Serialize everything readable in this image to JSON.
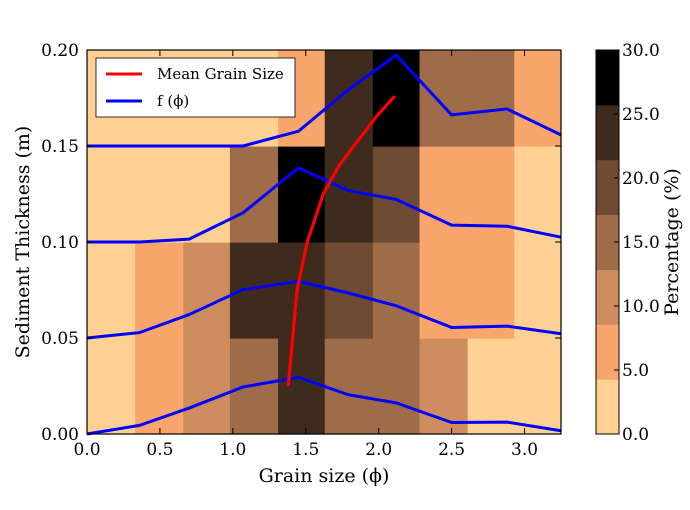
{
  "chart_data": {
    "type": "heatmap",
    "xlabel": "Grain size (ϕ)",
    "ylabel": "Sediment Thickness (m)",
    "xlim": [
      0.0,
      3.25
    ],
    "ylim": [
      0.0,
      0.2
    ],
    "x_ticks": [
      "0.0",
      "0.5",
      "1.0",
      "1.5",
      "2.0",
      "2.5",
      "3.0"
    ],
    "y_ticks": [
      "0.00",
      "0.05",
      "0.10",
      "0.15",
      "0.20"
    ],
    "x_edges": [
      0.0,
      0.33,
      0.66,
      0.98,
      1.31,
      1.63,
      1.96,
      2.28,
      2.61,
      2.93,
      3.25
    ],
    "y_edges": [
      0.0,
      0.05,
      0.1,
      0.15,
      0.2
    ],
    "heatmap_rows": [
      [
        3.5,
        7.0,
        9.0,
        16.0,
        24.0,
        16.0,
        15.0,
        9.0,
        3.0,
        3.0
      ],
      [
        3.0,
        6.0,
        12.0,
        22.0,
        23.0,
        20.0,
        17.0,
        8.0,
        5.0,
        3.0
      ],
      [
        2.0,
        2.5,
        3.5,
        14.0,
        30.0,
        25.0,
        18.0,
        7.5,
        8.0,
        3.0
      ],
      [
        2.0,
        2.0,
        2.0,
        2.0,
        5.5,
        23.0,
        29.0,
        14.0,
        15.0,
        6.0
      ]
    ],
    "colorbar": {
      "label": "Percentage (%)",
      "min": 0.0,
      "max": 30.0,
      "ticks": [
        "0.0",
        "5.0",
        "10.0",
        "15.0",
        "20.0",
        "25.0",
        "30.0"
      ],
      "colors": [
        "#ffd093",
        "#f9a66c",
        "#cd8d5f",
        "#9e6c48",
        "#6e4b32",
        "#3f2b1d",
        "#000000"
      ]
    },
    "series": [
      {
        "name": "Mean Grain Size",
        "color": "#ff0000",
        "x": [
          1.38,
          1.41,
          1.44,
          1.51,
          1.62,
          1.73,
          1.85,
          1.98,
          2.11
        ],
        "y": [
          0.025,
          0.05,
          0.075,
          0.1,
          0.125,
          0.14,
          0.152,
          0.165,
          0.176
        ]
      },
      {
        "name": "f (ϕ)",
        "color": "#0000ff",
        "lines": [
          {
            "x": [
              0.0,
              0.36,
              0.7,
              1.07,
              1.45,
              1.79,
              2.12,
              2.5,
              2.88,
              3.25
            ],
            "y": [
              0.0,
              0.0045,
              0.0135,
              0.0245,
              0.0295,
              0.0205,
              0.0162,
              0.006,
              0.0062,
              0.0017
            ]
          },
          {
            "x": [
              0.0,
              0.36,
              0.7,
              1.07,
              1.45,
              1.79,
              2.12,
              2.5,
              2.88,
              3.25
            ],
            "y": [
              0.05,
              0.0528,
              0.0622,
              0.0752,
              0.0795,
              0.0735,
              0.0668,
              0.0555,
              0.0562,
              0.0522
            ]
          },
          {
            "x": [
              0.0,
              0.36,
              0.7,
              1.07,
              1.45,
              1.79,
              2.12,
              2.5,
              2.88,
              3.25
            ],
            "y": [
              0.1,
              0.1,
              0.1015,
              0.1152,
              0.1386,
              0.1268,
              0.1222,
              0.1088,
              0.1082,
              0.1025
            ]
          },
          {
            "x": [
              0.0,
              0.36,
              0.7,
              1.07,
              1.45,
              1.79,
              2.12,
              2.5,
              2.88,
              3.25
            ],
            "y": [
              0.15,
              0.15,
              0.15,
              0.15,
              0.1577,
              0.1792,
              0.1973,
              0.1662,
              0.1693,
              0.1558
            ]
          }
        ]
      }
    ],
    "legend": {
      "position": "top-left",
      "entries": [
        "Mean Grain Size",
        "f (ϕ)"
      ]
    }
  }
}
